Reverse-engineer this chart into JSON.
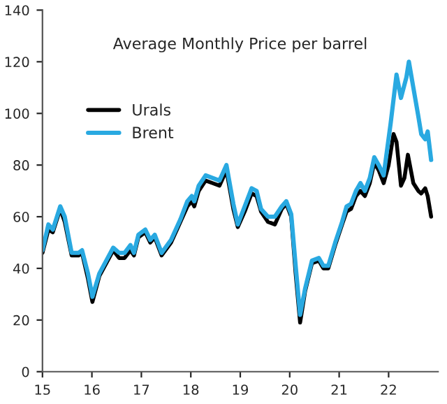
{
  "chart_data": {
    "type": "line",
    "title": "Average Monthly Price per barrel",
    "xlim": [
      15,
      23
    ],
    "xticks": [
      15,
      16,
      17,
      18,
      19,
      20,
      21,
      22
    ],
    "ylim": [
      0,
      140
    ],
    "yticks": [
      0,
      20,
      40,
      60,
      80,
      100,
      120,
      140
    ],
    "grid": false,
    "legend": "top left",
    "marker": "none",
    "line_style": "solid",
    "series": [
      {
        "name": "Urals",
        "color": "#000000",
        "x": [
          15.0,
          15.12,
          15.21,
          15.36,
          15.45,
          15.59,
          15.73,
          15.8,
          15.92,
          16.01,
          16.15,
          16.29,
          16.43,
          16.55,
          16.66,
          16.78,
          16.85,
          16.94,
          17.08,
          17.18,
          17.27,
          17.41,
          17.6,
          17.79,
          17.93,
          18.02,
          18.07,
          18.16,
          18.3,
          18.44,
          18.58,
          18.72,
          18.86,
          18.95,
          19.09,
          19.23,
          19.33,
          19.42,
          19.56,
          19.7,
          19.84,
          19.93,
          20.03,
          20.12,
          20.21,
          20.31,
          20.45,
          20.59,
          20.68,
          20.78,
          20.92,
          21.06,
          21.15,
          21.24,
          21.34,
          21.43,
          21.52,
          21.62,
          21.71,
          21.8,
          21.9,
          22.0,
          22.1,
          22.16,
          22.25,
          22.32,
          22.39,
          22.5,
          22.6,
          22.66,
          22.74,
          22.79,
          22.86
        ],
        "values": [
          46,
          55,
          54,
          63,
          58,
          45,
          45,
          46,
          36,
          27,
          37,
          42,
          47,
          44,
          44,
          47,
          45,
          52,
          54,
          50,
          52,
          45,
          50,
          58,
          64,
          66,
          64,
          70,
          74,
          73,
          72,
          78,
          63,
          56,
          62,
          69,
          68,
          62,
          58,
          57,
          63,
          65,
          60,
          38,
          19,
          31,
          42,
          43,
          40,
          40,
          49,
          57,
          62,
          63,
          68,
          70,
          68,
          73,
          81,
          78,
          73,
          80,
          92,
          89,
          72,
          75,
          84,
          73,
          70,
          69,
          71,
          68,
          60
        ]
      },
      {
        "name": "Brent",
        "color": "#29a9e1",
        "x": [
          15.0,
          15.12,
          15.21,
          15.36,
          15.45,
          15.59,
          15.73,
          15.8,
          15.92,
          16.01,
          16.15,
          16.29,
          16.43,
          16.55,
          16.66,
          16.78,
          16.85,
          16.94,
          17.08,
          17.18,
          17.27,
          17.41,
          17.6,
          17.79,
          17.93,
          18.02,
          18.07,
          18.16,
          18.3,
          18.44,
          18.58,
          18.72,
          18.86,
          18.95,
          19.09,
          19.23,
          19.33,
          19.42,
          19.56,
          19.7,
          19.84,
          19.93,
          20.03,
          20.12,
          20.21,
          20.31,
          20.45,
          20.59,
          20.68,
          20.78,
          20.92,
          21.06,
          21.15,
          21.24,
          21.34,
          21.43,
          21.52,
          21.62,
          21.71,
          21.8,
          21.9,
          22.04,
          22.16,
          22.25,
          22.36,
          22.41,
          22.5,
          22.6,
          22.66,
          22.74,
          22.79,
          22.86
        ],
        "values": [
          47,
          57,
          55,
          64,
          60,
          46,
          46,
          47,
          38,
          29,
          38,
          43,
          48,
          46,
          46,
          49,
          46,
          53,
          55,
          51,
          53,
          46,
          51,
          59,
          66,
          68,
          66,
          72,
          76,
          75,
          74,
          80,
          65,
          57,
          64,
          71,
          70,
          63,
          60,
          60,
          64,
          66,
          61,
          41,
          22,
          32,
          43,
          44,
          41,
          41,
          50,
          58,
          64,
          65,
          70,
          73,
          70,
          75,
          83,
          80,
          76,
          96,
          115,
          106,
          114,
          120,
          110,
          99,
          92,
          90,
          93,
          82
        ]
      }
    ]
  }
}
